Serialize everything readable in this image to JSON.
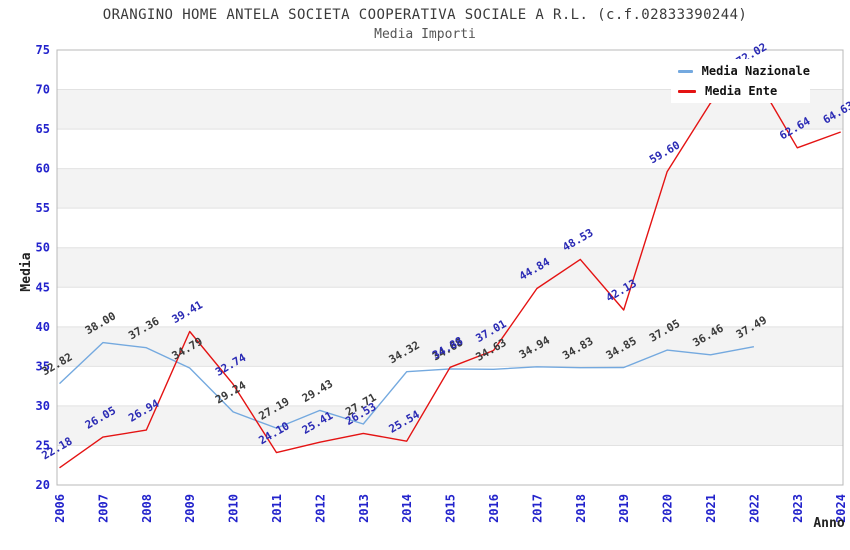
{
  "header": {
    "title": "ORANGINO HOME ANTELA SOCIETA COOPERATIVA SOCIALE A R.L. (c.f.02833390244)",
    "subtitle": "Media Importi"
  },
  "axes": {
    "y_label": "Media",
    "x_label": "Anno",
    "y_ticks": [
      20,
      25,
      30,
      35,
      40,
      45,
      50,
      55,
      60,
      65,
      70,
      75
    ],
    "x_ticks": [
      2006,
      2007,
      2008,
      2009,
      2010,
      2011,
      2012,
      2013,
      2014,
      2015,
      2016,
      2017,
      2018,
      2019,
      2020,
      2021,
      2022,
      2023,
      2024
    ]
  },
  "legend": {
    "items": [
      {
        "label": "Media Nazionale",
        "color": "#74a9df"
      },
      {
        "label": "Media Ente",
        "color": "#e41313"
      }
    ]
  },
  "colors": {
    "tick_label": "#2323cc",
    "nazionale_line": "#74a9df",
    "ente_line": "#e41313",
    "nazionale_value_label": "#3a3a3a",
    "ente_value_label": "#2a2ab4",
    "band": "#f3f3f3",
    "grid_line": "#e2e2e2",
    "frame": "#b8b8b8",
    "axis_title": "#222222"
  },
  "chart_data": {
    "type": "line",
    "title": "ORANGINO HOME ANTELA SOCIETA COOPERATIVA SOCIALE A R.L. (c.f.02833390244)",
    "subtitle": "Media Importi",
    "xlabel": "Anno",
    "ylabel": "Media",
    "ylim": [
      20,
      75
    ],
    "ytick_step": 5,
    "x_range": [
      2006,
      2024
    ],
    "grid": "horizontal gridlines with alternating gray bands every 5 units",
    "legend_position": "top-right",
    "series": [
      {
        "name": "Media Nazionale",
        "color": "#74a9df",
        "label_color": "#3a3a3a",
        "years": [
          2006,
          2007,
          2008,
          2009,
          2010,
          2011,
          2012,
          2013,
          2014,
          2015,
          2016,
          2017,
          2018,
          2019,
          2020,
          2021,
          2022
        ],
        "values": [
          32.82,
          38.0,
          37.36,
          34.79,
          29.24,
          27.19,
          29.43,
          27.71,
          34.32,
          34.68,
          34.63,
          34.94,
          34.83,
          34.85,
          37.05,
          36.46,
          37.49
        ],
        "labels": [
          "32.82",
          "38.00",
          "37.36",
          "34.79",
          "29.24",
          "27.19",
          "29.43",
          "27.71",
          "34.32",
          "34.68",
          "34.63",
          "34.94",
          "34.83",
          "34.85",
          "37.05",
          "36.46",
          "37.49"
        ]
      },
      {
        "name": "Media Ente",
        "color": "#e41313",
        "label_color": "#2a2ab4",
        "years": [
          2006,
          2007,
          2008,
          2009,
          2010,
          2011,
          2012,
          2013,
          2014,
          2015,
          2016,
          2017,
          2018,
          2019,
          2020,
          2021,
          2022,
          2023,
          2024
        ],
        "values": [
          22.18,
          26.05,
          26.94,
          39.41,
          32.74,
          24.1,
          25.41,
          26.53,
          25.54,
          34.88,
          37.01,
          44.84,
          48.53,
          42.13,
          59.6,
          68.3,
          72.02,
          62.64,
          64.63
        ],
        "labels": [
          "22.18",
          "26.05",
          "26.94",
          "39.41",
          "32.74",
          "24.10",
          "25.41",
          "26.53",
          "25.54",
          "34.88",
          "37.01",
          "44.84",
          "48.53",
          "42.13",
          "59.60",
          "",
          "72.02",
          "62.64",
          "64.63"
        ]
      }
    ]
  }
}
